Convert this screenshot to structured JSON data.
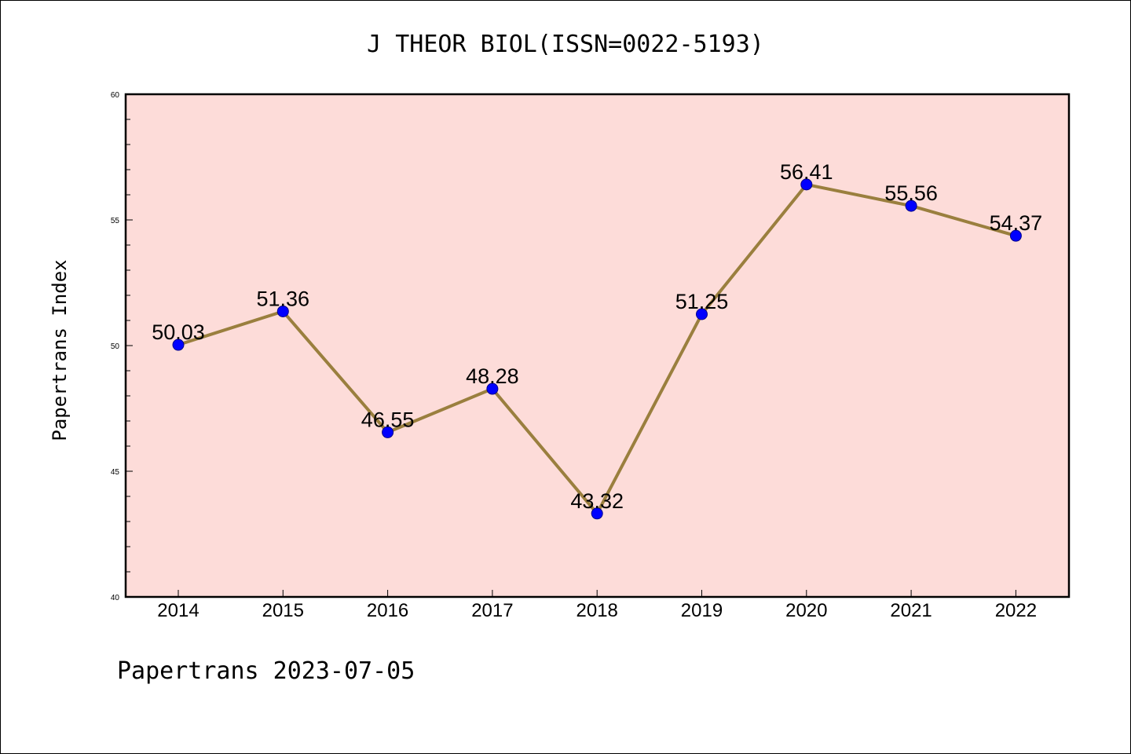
{
  "chart_data": {
    "type": "line",
    "title": "J THEOR BIOL(ISSN=0022-5193)",
    "ylabel": "Papertrans Index",
    "xlabel": "",
    "categories": [
      "2014",
      "2015",
      "2016",
      "2017",
      "2018",
      "2019",
      "2020",
      "2021",
      "2022"
    ],
    "values": [
      50.03,
      51.36,
      46.55,
      48.28,
      43.32,
      51.25,
      56.41,
      55.56,
      54.37
    ],
    "data_labels": [
      "50.03",
      "51.36",
      "46.55",
      "48.28",
      "43.32",
      "51.25",
      "56.41",
      "55.56",
      "54.37"
    ],
    "ylim": [
      40,
      60
    ],
    "y_major_ticks": [
      40,
      45,
      50,
      55,
      60
    ],
    "y_tick_labels": [
      "40",
      "45",
      "50",
      "55",
      "60"
    ],
    "y_minor_step": 1,
    "grid": false,
    "legend": "none",
    "colors": {
      "plot_background": "#FDDCD9",
      "line": "#9A7F3E",
      "marker": "#0000FF",
      "axis": "#000000"
    }
  },
  "footer": "Papertrans 2023-07-05"
}
